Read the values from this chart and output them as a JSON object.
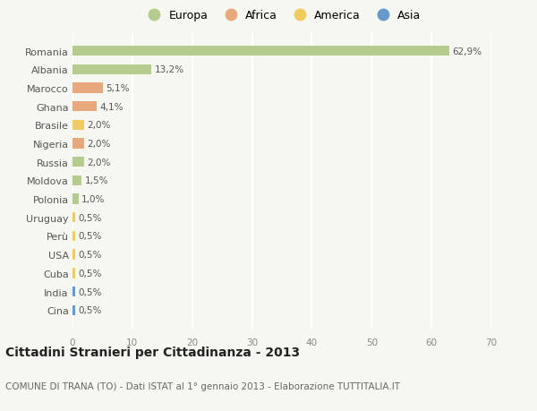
{
  "countries": [
    "Romania",
    "Albania",
    "Marocco",
    "Ghana",
    "Brasile",
    "Nigeria",
    "Russia",
    "Moldova",
    "Polonia",
    "Uruguay",
    "Perù",
    "USA",
    "Cuba",
    "India",
    "Cina"
  ],
  "values": [
    62.9,
    13.2,
    5.1,
    4.1,
    2.0,
    2.0,
    2.0,
    1.5,
    1.0,
    0.5,
    0.5,
    0.5,
    0.5,
    0.5,
    0.5
  ],
  "labels": [
    "62,9%",
    "13,2%",
    "5,1%",
    "4,1%",
    "2,0%",
    "2,0%",
    "2,0%",
    "1,5%",
    "1,0%",
    "0,5%",
    "0,5%",
    "0,5%",
    "0,5%",
    "0,5%",
    "0,5%"
  ],
  "continents": [
    "Europa",
    "Europa",
    "Africa",
    "Africa",
    "America",
    "Africa",
    "Europa",
    "Europa",
    "Europa",
    "America",
    "America",
    "America",
    "America",
    "Asia",
    "Asia"
  ],
  "colors": {
    "Europa": "#b5cc8e",
    "Africa": "#e8a87c",
    "America": "#f0cc60",
    "Asia": "#6699cc"
  },
  "title": "Cittadini Stranieri per Cittadinanza - 2013",
  "subtitle": "COMUNE DI TRANA (TO) - Dati ISTAT al 1° gennaio 2013 - Elaborazione TUTTITALIA.IT",
  "xlim": [
    0,
    70
  ],
  "xticks": [
    0,
    10,
    20,
    30,
    40,
    50,
    60,
    70
  ],
  "background_color": "#f7f7f2",
  "grid_color": "#ffffff",
  "bar_height": 0.55,
  "legend_order": [
    "Europa",
    "Africa",
    "America",
    "Asia"
  ],
  "title_fontsize": 10,
  "subtitle_fontsize": 7.5
}
